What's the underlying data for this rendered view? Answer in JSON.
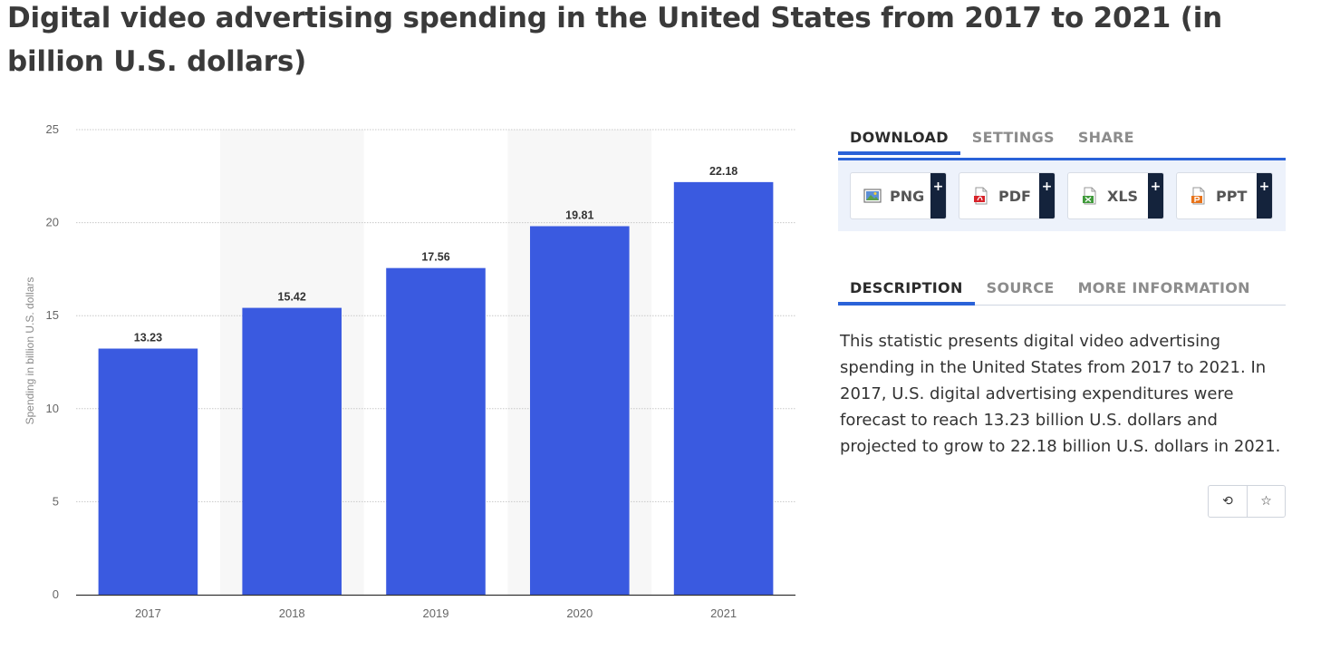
{
  "page": {
    "title": "Digital video advertising spending in the United States from 2017 to 2021 (in billion U.S. dollars)"
  },
  "colors": {
    "bar": "#3a5ae0",
    "accent": "#2a62d8",
    "band": "#f7f7f7",
    "plus_bg": "#14233c"
  },
  "chart_data": {
    "type": "bar",
    "categories": [
      "2017",
      "2018",
      "2019",
      "2020",
      "2021"
    ],
    "values": [
      13.23,
      15.42,
      17.56,
      19.81,
      22.18
    ],
    "data_labels": [
      "13.23",
      "15.42",
      "17.56",
      "19.81",
      "22.18"
    ],
    "ylabel": "Spending in billion U.S. dollars",
    "xlabel": "",
    "ylim": [
      0,
      25
    ],
    "yticks": [
      0,
      5,
      10,
      15,
      20,
      25
    ],
    "grid": true,
    "alternating_bands": true
  },
  "download_tabs": [
    {
      "label": "DOWNLOAD",
      "active": true
    },
    {
      "label": "SETTINGS",
      "active": false
    },
    {
      "label": "SHARE",
      "active": false
    }
  ],
  "downloads": [
    {
      "label": "PNG",
      "plus": "+",
      "icon": "png-file-icon"
    },
    {
      "label": "PDF",
      "plus": "+",
      "icon": "pdf-file-icon"
    },
    {
      "label": "XLS",
      "plus": "+",
      "icon": "xls-file-icon"
    },
    {
      "label": "PPT",
      "plus": "+",
      "icon": "ppt-file-icon"
    }
  ],
  "info_tabs": [
    {
      "label": "DESCRIPTION",
      "active": true
    },
    {
      "label": "SOURCE",
      "active": false
    },
    {
      "label": "MORE INFORMATION",
      "active": false
    }
  ],
  "description": "This statistic presents digital video advertising spending in the United States from 2017 to 2021. In 2017, U.S. digital advertising expenditures were forecast to reach 13.23 billion U.S. dollars and projected to grow to 22.18 billion U.S. dollars in 2021.",
  "actions": [
    {
      "icon": "history-icon",
      "glyph": "⟲"
    },
    {
      "icon": "star-icon",
      "glyph": "☆"
    }
  ]
}
